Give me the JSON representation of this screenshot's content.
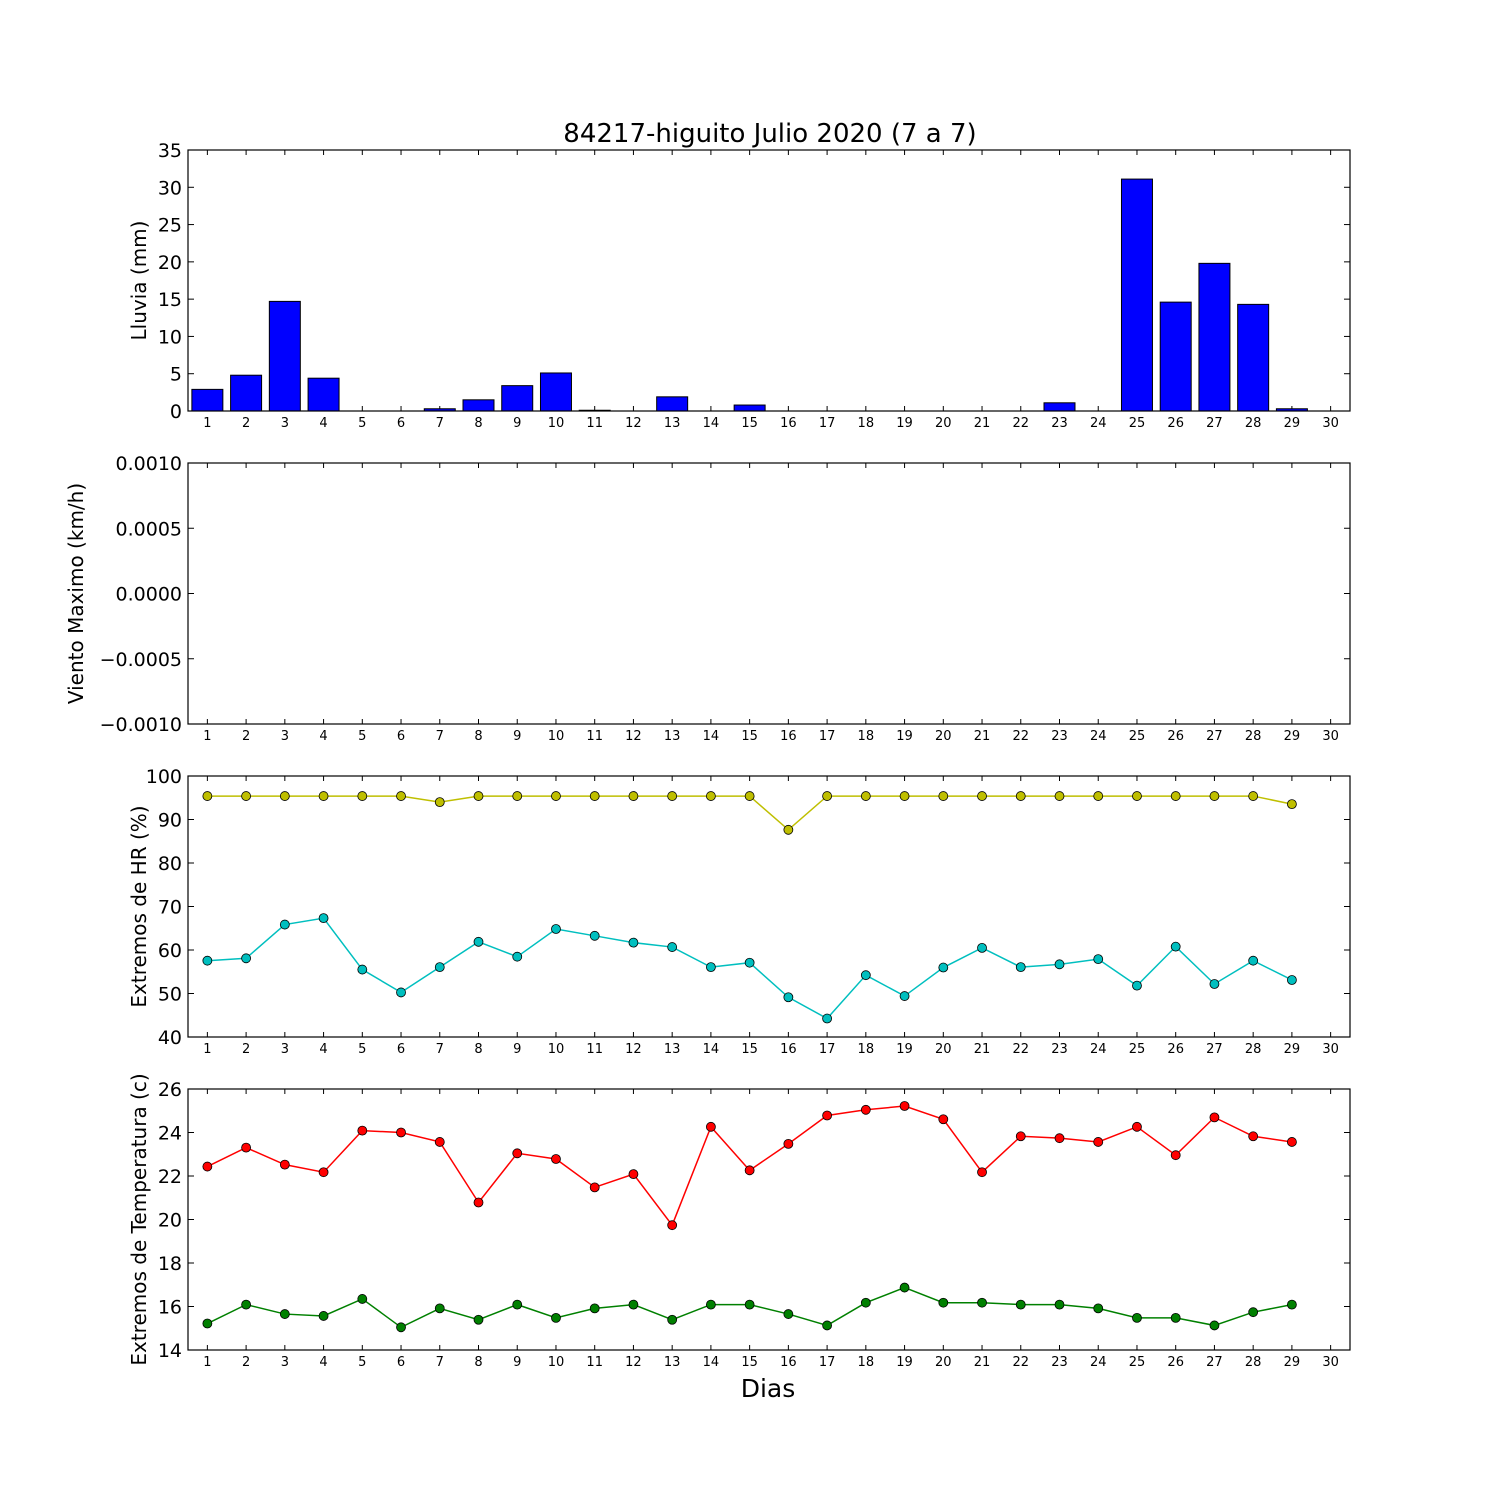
{
  "figure": {
    "title": "84217-higuito Julio 2020  (7 a 7)",
    "xlabel": "Dias"
  },
  "chart_data": [
    {
      "type": "bar",
      "ylabel": "Lluvia (mm)",
      "ylim": [
        0,
        35
      ],
      "yticks": [
        "0",
        "5",
        "10",
        "15",
        "20",
        "25",
        "30",
        "35"
      ],
      "xticks": [
        "1",
        "2",
        "3",
        "4",
        "5",
        "6",
        "7",
        "8",
        "9",
        "10",
        "11",
        "12",
        "13",
        "14",
        "15",
        "16",
        "17",
        "18",
        "19",
        "20",
        "21",
        "22",
        "23",
        "24",
        "25",
        "26",
        "27",
        "28",
        "29",
        "30"
      ],
      "x": [
        1,
        2,
        3,
        4,
        5,
        6,
        7,
        8,
        9,
        10,
        11,
        12,
        13,
        14,
        15,
        16,
        17,
        18,
        19,
        20,
        21,
        22,
        23,
        24,
        25,
        26,
        27,
        28,
        29
      ],
      "values": [
        2.9,
        4.8,
        14.7,
        4.4,
        0,
        0,
        0.3,
        1.5,
        3.4,
        5.1,
        0.1,
        0,
        1.9,
        0,
        0.8,
        0,
        0,
        0,
        0,
        0,
        0,
        0,
        1.1,
        0,
        31.1,
        14.6,
        19.8,
        14.3,
        0.3
      ],
      "color": "#0000ff"
    },
    {
      "type": "line",
      "ylabel": "Viento Maximo (km/h)",
      "ylim": [
        -0.001,
        0.001
      ],
      "yticks": [
        "−0.0010",
        "−0.0005",
        "0.0000",
        "0.0005",
        "0.0010"
      ],
      "xticks": [
        "1",
        "2",
        "3",
        "4",
        "5",
        "6",
        "7",
        "8",
        "9",
        "10",
        "11",
        "12",
        "13",
        "14",
        "15",
        "16",
        "17",
        "18",
        "19",
        "20",
        "21",
        "22",
        "23",
        "24",
        "25",
        "26",
        "27",
        "28",
        "29",
        "30"
      ],
      "series": []
    },
    {
      "type": "line",
      "ylabel": "Extremos de HR (%)",
      "ylim": [
        40,
        105
      ],
      "yticks": [
        "40",
        "50",
        "60",
        "70",
        "80",
        "90",
        "100"
      ],
      "xticks": [
        "1",
        "2",
        "3",
        "4",
        "5",
        "6",
        "7",
        "8",
        "9",
        "10",
        "11",
        "12",
        "13",
        "14",
        "15",
        "16",
        "17",
        "18",
        "19",
        "20",
        "21",
        "22",
        "23",
        "24",
        "25",
        "26",
        "27",
        "28",
        "29",
        "30"
      ],
      "x": [
        1,
        2,
        3,
        4,
        5,
        6,
        7,
        8,
        9,
        10,
        11,
        12,
        13,
        14,
        15,
        16,
        17,
        18,
        19,
        20,
        21,
        22,
        23,
        24,
        25,
        26,
        27,
        28,
        29
      ],
      "series": [
        {
          "color": "#bfbf00",
          "values": [
            100,
            100,
            100,
            100,
            100,
            100,
            98.5,
            100,
            100,
            100,
            100,
            100,
            100,
            100,
            100,
            91.6,
            100,
            100,
            100,
            100,
            100,
            100,
            100,
            100,
            100,
            100,
            100,
            100,
            98
          ]
        },
        {
          "color": "#00bfbf",
          "values": [
            59,
            59.6,
            68,
            69.6,
            56.8,
            51.1,
            57.4,
            63.7,
            60,
            66.9,
            65.2,
            63.5,
            62.4,
            57.4,
            58.5,
            49.9,
            44.6,
            55.4,
            50.2,
            57.3,
            62.2,
            57.4,
            58.1,
            59.4,
            52.8,
            62.5,
            53.2,
            59,
            54.2
          ]
        }
      ]
    },
    {
      "type": "line",
      "ylabel": "Extremos de Temperatura (c)",
      "ylim": [
        13.6,
        27.4
      ],
      "yticks": [
        "14",
        "16",
        "18",
        "20",
        "22",
        "24",
        "26"
      ],
      "xticks": [
        "1",
        "2",
        "3",
        "4",
        "5",
        "6",
        "7",
        "8",
        "9",
        "10",
        "11",
        "12",
        "13",
        "14",
        "15",
        "16",
        "17",
        "18",
        "19",
        "20",
        "21",
        "22",
        "23",
        "24",
        "25",
        "26",
        "27",
        "28",
        "29",
        "30"
      ],
      "x": [
        1,
        2,
        3,
        4,
        5,
        6,
        7,
        8,
        9,
        10,
        11,
        12,
        13,
        14,
        15,
        16,
        17,
        18,
        19,
        20,
        21,
        22,
        23,
        24,
        25,
        26,
        27,
        28,
        29
      ],
      "series": [
        {
          "color": "#ff0000",
          "values": [
            23.3,
            24.3,
            23.4,
            23.0,
            25.2,
            25.1,
            24.6,
            21.4,
            24.0,
            23.7,
            22.2,
            22.9,
            20.2,
            25.4,
            23.1,
            24.5,
            26.0,
            26.3,
            26.5,
            25.8,
            23.0,
            24.9,
            24.8,
            24.6,
            25.4,
            23.9,
            25.9,
            24.9,
            24.6
          ]
        },
        {
          "color": "#008000",
          "values": [
            15.0,
            16.0,
            15.5,
            15.4,
            16.3,
            14.8,
            15.8,
            15.2,
            16.0,
            15.3,
            15.8,
            16.0,
            15.2,
            16.0,
            16.0,
            15.5,
            14.9,
            16.1,
            16.9,
            16.1,
            16.1,
            16.0,
            16.0,
            15.8,
            15.3,
            15.3,
            14.9,
            15.6,
            16.0
          ]
        }
      ]
    }
  ]
}
